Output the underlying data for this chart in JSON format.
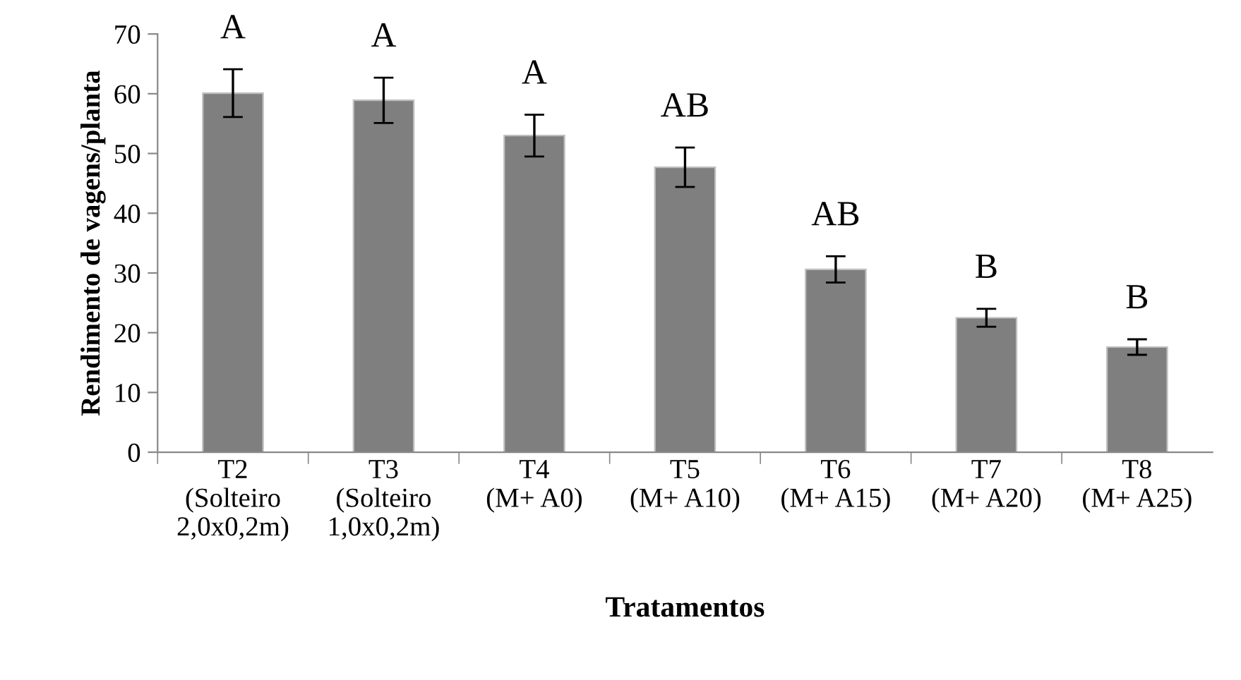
{
  "chart_data": {
    "type": "bar",
    "xlabel": "Tratamentos",
    "ylabel": "Rendimento de vagens/planta",
    "categories": [
      "T2\n(Solteiro\n2,0x0,2m)",
      "T3\n(Solteiro\n1,0x0,2m)",
      "T4\n(M+ A0)",
      "T5\n(M+ A10)",
      "T6\n(M+ A15)",
      "T7\n(M+ A20)",
      "T8\n(M+ A25)"
    ],
    "values": [
      60.1,
      58.9,
      53.0,
      47.7,
      30.6,
      22.5,
      17.6
    ],
    "errors": [
      4.0,
      3.8,
      3.5,
      3.3,
      2.2,
      1.5,
      1.3
    ],
    "color": "#7f7f7f",
    "ylim": [
      0,
      70
    ],
    "yticks": [
      0,
      10,
      20,
      30,
      40,
      50,
      60,
      70
    ],
    "grid": false,
    "legend": false,
    "annotations": [
      "A",
      "A",
      "A",
      "AB",
      "AB",
      "B",
      "B"
    ]
  }
}
